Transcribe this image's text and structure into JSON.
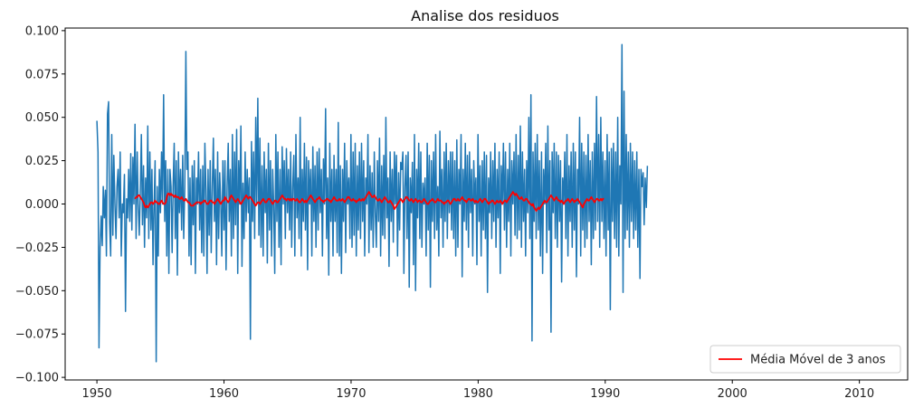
{
  "chart_data": {
    "type": "line",
    "title": "Analise dos residuos",
    "xlabel": "",
    "ylabel": "",
    "xlim": [
      1947.5,
      2013.8
    ],
    "ylim": [
      -0.1015,
      0.1015
    ],
    "x_ticks": [
      1950,
      1960,
      1970,
      1980,
      1990,
      2000,
      2010
    ],
    "x_tick_labels": [
      "1950",
      "1960",
      "1970",
      "1980",
      "1990",
      "2000",
      "2010"
    ],
    "y_ticks": [
      0.1,
      0.075,
      0.05,
      0.025,
      0.0,
      -0.025,
      -0.05,
      -0.075,
      -0.1
    ],
    "y_tick_labels": [
      "0.100",
      "0.075",
      "0.050",
      "0.025",
      "0.000",
      "−0.025",
      "−0.050",
      "−0.075",
      "−0.100"
    ],
    "grid": false,
    "legend": {
      "placement": "bottom-right",
      "entries": [
        "Média Móvel de 3 anos"
      ]
    },
    "series": [
      {
        "color": "#1f77b4",
        "start": 1950.0,
        "step": 0.0833,
        "note_points": "monthly residuals, ~733 points; values listed in order",
        "values": [
          0.048,
          0.03,
          -0.083,
          -0.025,
          -0.007,
          -0.024,
          0.01,
          -0.008,
          0.008,
          -0.03,
          0.052,
          0.059,
          -0.01,
          -0.03,
          0.04,
          -0.018,
          0.028,
          0.0,
          -0.02,
          0.01,
          0.02,
          -0.008,
          0.03,
          -0.03,
          0.0,
          -0.005,
          0.017,
          -0.062,
          0.003,
          -0.008,
          0.02,
          -0.01,
          0.029,
          -0.015,
          0.027,
          0.0,
          0.046,
          -0.02,
          0.03,
          0.0,
          -0.018,
          0.008,
          0.04,
          -0.012,
          0.022,
          -0.025,
          0.015,
          -0.008,
          0.045,
          -0.02,
          0.03,
          -0.015,
          0.02,
          -0.035,
          0.0,
          0.025,
          -0.091,
          0.01,
          -0.03,
          0.02,
          -0.005,
          0.03,
          0.0,
          0.063,
          -0.01,
          0.025,
          -0.03,
          0.02,
          -0.04,
          0.02,
          0.01,
          -0.028,
          0.01,
          0.035,
          -0.02,
          0.025,
          -0.041,
          0.03,
          -0.005,
          0.02,
          -0.015,
          0.028,
          -0.02,
          0.01,
          0.088,
          0.02,
          0.03,
          -0.03,
          0.015,
          -0.035,
          0.022,
          -0.012,
          0.025,
          -0.04,
          0.015,
          0.0,
          0.03,
          -0.015,
          0.02,
          -0.028,
          0.022,
          -0.03,
          0.035,
          0.008,
          -0.04,
          0.02,
          -0.018,
          0.025,
          -0.028,
          0.01,
          0.038,
          -0.01,
          0.02,
          -0.035,
          0.03,
          -0.02,
          0.018,
          0.0,
          -0.03,
          0.025,
          -0.015,
          0.025,
          -0.038,
          0.01,
          0.035,
          -0.01,
          0.02,
          -0.03,
          0.04,
          -0.02,
          0.03,
          -0.012,
          0.043,
          -0.04,
          0.025,
          0.0,
          0.045,
          -0.036,
          0.012,
          -0.02,
          0.03,
          -0.01,
          0.02,
          -0.005,
          0.015,
          -0.078,
          0.036,
          -0.01,
          0.03,
          -0.02,
          0.05,
          0.0,
          0.061,
          -0.018,
          0.038,
          -0.025,
          0.022,
          -0.03,
          0.03,
          -0.005,
          0.02,
          -0.034,
          0.035,
          -0.015,
          0.025,
          -0.03,
          0.02,
          0.0,
          -0.04,
          0.04,
          -0.01,
          0.03,
          -0.025,
          0.02,
          -0.035,
          0.033,
          0.0,
          0.025,
          -0.02,
          0.032,
          -0.005,
          0.02,
          -0.015,
          0.03,
          -0.025,
          0.01,
          0.028,
          -0.03,
          0.04,
          -0.008,
          0.015,
          -0.02,
          0.05,
          -0.03,
          0.02,
          -0.01,
          0.035,
          -0.015,
          0.027,
          -0.038,
          0.025,
          0.0,
          0.02,
          -0.03,
          0.033,
          -0.01,
          0.022,
          -0.025,
          0.03,
          -0.015,
          0.032,
          -0.005,
          0.02,
          -0.03,
          0.026,
          0.0,
          0.055,
          -0.02,
          0.015,
          -0.041,
          0.035,
          -0.01,
          0.02,
          -0.03,
          0.028,
          -0.01,
          0.02,
          -0.028,
          0.047,
          -0.03,
          0.022,
          -0.04,
          0.02,
          -0.01,
          0.035,
          -0.028,
          0.025,
          0.0,
          0.015,
          -0.02,
          0.04,
          -0.025,
          0.03,
          -0.018,
          0.035,
          -0.03,
          0.022,
          -0.015,
          0.03,
          -0.02,
          0.035,
          -0.01,
          0.025,
          -0.03,
          0.015,
          0.0,
          0.04,
          -0.028,
          0.022,
          -0.015,
          0.018,
          -0.025,
          0.03,
          -0.005,
          -0.025,
          0.025,
          -0.01,
          0.038,
          -0.03,
          0.022,
          -0.018,
          0.028,
          -0.02,
          0.05,
          -0.008,
          0.015,
          -0.036,
          0.03,
          -0.01,
          0.02,
          -0.022,
          0.03,
          0.0,
          0.028,
          -0.03,
          0.018,
          -0.015,
          0.024,
          0.02,
          0.03,
          -0.04,
          0.01,
          0.028,
          -0.02,
          0.03,
          -0.048,
          0.015,
          -0.005,
          0.024,
          -0.035,
          0.04,
          -0.05,
          0.02,
          -0.008,
          0.035,
          -0.02,
          0.03,
          -0.025,
          0.012,
          0.0,
          0.015,
          -0.03,
          0.035,
          -0.015,
          0.028,
          -0.048,
          0.025,
          -0.01,
          0.03,
          -0.02,
          0.04,
          -0.015,
          0.01,
          -0.03,
          0.042,
          -0.008,
          0.02,
          -0.025,
          0.03,
          -0.01,
          0.035,
          -0.02,
          0.025,
          -0.005,
          0.03,
          -0.015,
          0.03,
          -0.02,
          0.025,
          -0.03,
          0.037,
          -0.025,
          0.02,
          0.0,
          0.04,
          -0.042,
          0.02,
          -0.01,
          0.035,
          -0.015,
          0.028,
          -0.025,
          0.03,
          -0.005,
          0.02,
          -0.03,
          0.025,
          0.0,
          0.015,
          -0.035,
          0.04,
          -0.01,
          0.022,
          -0.03,
          0.025,
          -0.015,
          0.03,
          -0.02,
          0.028,
          -0.051,
          0.015,
          -0.005,
          0.03,
          -0.02,
          0.025,
          -0.01,
          0.035,
          -0.025,
          0.02,
          -0.008,
          0.03,
          -0.04,
          0.022,
          0.0,
          0.035,
          -0.015,
          0.03,
          -0.025,
          0.02,
          -0.01,
          0.035,
          -0.03,
          0.025,
          0.0,
          0.03,
          -0.018,
          0.04,
          -0.02,
          0.028,
          -0.015,
          0.045,
          -0.025,
          0.03,
          -0.01,
          0.02,
          -0.03,
          0.025,
          -0.005,
          0.05,
          -0.02,
          0.063,
          -0.079,
          0.03,
          -0.01,
          0.035,
          -0.02,
          0.04,
          -0.015,
          0.025,
          -0.03,
          0.03,
          -0.04,
          0.02,
          0.0,
          0.035,
          -0.028,
          0.045,
          -0.015,
          0.025,
          -0.074,
          0.03,
          -0.005,
          0.035,
          -0.02,
          0.03,
          -0.025,
          0.028,
          -0.01,
          0.025,
          -0.045,
          0.015,
          0.0,
          0.03,
          -0.02,
          0.04,
          -0.03,
          0.022,
          -0.01,
          0.03,
          -0.025,
          0.035,
          -0.015,
          0.03,
          -0.042,
          0.02,
          0.0,
          0.05,
          -0.03,
          0.035,
          -0.015,
          0.03,
          -0.025,
          0.028,
          -0.02,
          0.04,
          -0.01,
          0.025,
          -0.035,
          0.03,
          -0.02,
          0.035,
          -0.015,
          0.062,
          -0.01,
          0.04,
          -0.025,
          0.05,
          -0.01,
          0.03,
          -0.02,
          0.025,
          -0.03,
          0.04,
          -0.015,
          0.03,
          -0.061,
          0.032,
          -0.01,
          0.035,
          -0.02,
          0.03,
          -0.025,
          0.05,
          -0.03,
          0.022,
          0.0,
          0.092,
          -0.051,
          0.065,
          -0.02,
          0.04,
          -0.015,
          0.03,
          -0.025,
          0.035,
          -0.01,
          0.03,
          -0.02,
          0.025,
          -0.015,
          0.03,
          -0.025,
          0.02,
          -0.043,
          0.02,
          0.01,
          0.018,
          -0.012,
          0.015,
          -0.002,
          0.022
        ]
      },
      {
        "name": "Média Móvel de 3 anos",
        "color": "#ff0000",
        "start": 1953.0,
        "step": 0.0833,
        "values": [
          0.003,
          0.004,
          0.004,
          0.005,
          0.005,
          0.004,
          0.003,
          0.002,
          0.001,
          -0.001,
          -0.002,
          -0.001,
          -0.002,
          -0.001,
          0.0,
          0.001,
          0.001,
          0.0,
          0.001,
          0.002,
          0.001,
          0.001,
          0.0,
          0.0,
          0.001,
          0.002,
          0.001,
          0.0,
          0.0,
          0.001,
          0.004,
          0.006,
          0.006,
          0.005,
          0.006,
          0.005,
          0.005,
          0.004,
          0.005,
          0.004,
          0.004,
          0.004,
          0.003,
          0.003,
          0.004,
          0.003,
          0.002,
          0.002,
          0.003,
          0.002,
          0.001,
          0.001,
          0.0,
          -0.001,
          -0.001,
          -0.001,
          0.0,
          0.0,
          0.001,
          0.001,
          0.001,
          0.001,
          0.0,
          0.001,
          0.001,
          0.002,
          0.002,
          0.001,
          0.0,
          0.0,
          0.001,
          0.002,
          0.002,
          0.001,
          0.001,
          0.0,
          0.001,
          0.002,
          0.003,
          0.002,
          0.001,
          0.0,
          0.001,
          0.002,
          0.002,
          0.004,
          0.003,
          0.002,
          0.001,
          0.002,
          0.004,
          0.005,
          0.004,
          0.003,
          0.002,
          0.001,
          0.002,
          0.003,
          0.002,
          0.001,
          0.0,
          0.001,
          0.002,
          0.003,
          0.004,
          0.005,
          0.004,
          0.003,
          0.004,
          0.004,
          0.003,
          0.002,
          0.001,
          0.0,
          -0.001,
          0.0,
          0.001,
          0.001,
          0.0,
          0.001,
          0.002,
          0.003,
          0.002,
          0.001,
          0.001,
          0.002,
          0.003,
          0.003,
          0.002,
          0.001,
          0.0,
          0.001,
          0.002,
          0.002,
          0.001,
          0.001,
          0.002,
          0.003,
          0.004,
          0.005,
          0.004,
          0.003,
          0.003,
          0.002,
          0.003,
          0.003,
          0.002,
          0.003,
          0.002,
          0.003,
          0.003,
          0.002,
          0.002,
          0.003,
          0.002,
          0.001,
          0.001,
          0.002,
          0.003,
          0.002,
          0.001,
          0.002,
          0.001,
          0.002,
          0.003,
          0.004,
          0.005,
          0.004,
          0.003,
          0.002,
          0.001,
          0.002,
          0.003,
          0.003,
          0.004,
          0.003,
          0.002,
          0.002,
          0.001,
          0.002,
          0.002,
          0.003,
          0.003,
          0.002,
          0.002,
          0.001,
          0.002,
          0.003,
          0.004,
          0.003,
          0.002,
          0.002,
          0.002,
          0.003,
          0.002,
          0.002,
          0.003,
          0.002,
          0.001,
          0.002,
          0.003,
          0.004,
          0.004,
          0.003,
          0.002,
          0.002,
          0.003,
          0.002,
          0.002,
          0.001,
          0.002,
          0.002,
          0.003,
          0.002,
          0.002,
          0.003,
          0.002,
          0.003,
          0.004,
          0.005,
          0.006,
          0.007,
          0.006,
          0.005,
          0.004,
          0.004,
          0.005,
          0.004,
          0.003,
          0.002,
          0.002,
          0.003,
          0.002,
          0.001,
          0.002,
          0.003,
          0.004,
          0.003,
          0.002,
          0.001,
          0.001,
          0.002,
          0.001,
          0.0,
          -0.001,
          -0.003,
          -0.002,
          -0.001,
          0.0,
          0.001,
          0.002,
          0.003,
          0.002,
          0.001,
          0.002,
          0.003,
          0.004,
          0.004,
          0.003,
          0.002,
          0.002,
          0.003,
          0.002,
          0.001,
          0.002,
          0.003,
          0.002,
          0.001,
          0.002,
          0.002,
          0.001,
          0.001,
          0.002,
          0.003,
          0.002,
          0.001,
          0.0,
          0.0,
          0.001,
          0.002,
          0.002,
          0.003,
          0.002,
          0.001,
          0.001,
          0.002,
          0.003,
          0.002,
          0.002,
          0.002,
          0.001,
          0.001,
          0.0,
          0.001,
          0.001,
          0.002,
          0.002,
          0.001,
          0.0,
          0.001,
          0.002,
          0.003,
          0.003,
          0.002,
          0.002,
          0.003,
          0.002,
          0.002,
          0.003,
          0.004,
          0.003,
          0.002,
          0.002,
          0.001,
          0.002,
          0.003,
          0.003,
          0.002,
          0.002,
          0.003,
          0.002,
          0.001,
          0.002,
          0.001,
          0.001,
          0.002,
          0.003,
          0.002,
          0.001,
          0.002,
          0.003,
          0.003,
          0.002,
          0.001,
          0.0,
          0.001,
          0.001,
          0.002,
          0.002,
          0.001,
          0.0,
          0.001,
          0.002,
          0.001,
          0.001,
          0.002,
          0.001,
          0.0,
          0.001,
          0.002,
          0.002,
          0.001,
          0.002,
          0.003,
          0.004,
          0.005,
          0.006,
          0.007,
          0.006,
          0.005,
          0.006,
          0.005,
          0.004,
          0.003,
          0.003,
          0.004,
          0.003,
          0.002,
          0.002,
          0.003,
          0.003,
          0.002,
          0.001,
          0.0,
          0.0,
          -0.001,
          0.0,
          -0.002,
          -0.003,
          -0.004,
          -0.003,
          -0.002,
          -0.003,
          -0.002,
          -0.001,
          0.0,
          0.001,
          0.002,
          0.001,
          0.001,
          0.002,
          0.003,
          0.004,
          0.005,
          0.004,
          0.003,
          0.002,
          0.003,
          0.004,
          0.003,
          0.002,
          0.002,
          0.001,
          0.002,
          0.001,
          0.0,
          0.001,
          0.002,
          0.002,
          0.003,
          0.002,
          0.001,
          0.002,
          0.003,
          0.002,
          0.001,
          0.002,
          0.002,
          0.003,
          0.002,
          0.001,
          0.0,
          -0.001,
          -0.002,
          0.0,
          0.001,
          0.002,
          0.003,
          0.002,
          0.002,
          0.003,
          0.004,
          0.003,
          0.002,
          0.001,
          0.002,
          0.003,
          0.003,
          0.002,
          0.002,
          0.003,
          0.002,
          0.003,
          0.003
        ]
      }
    ]
  }
}
